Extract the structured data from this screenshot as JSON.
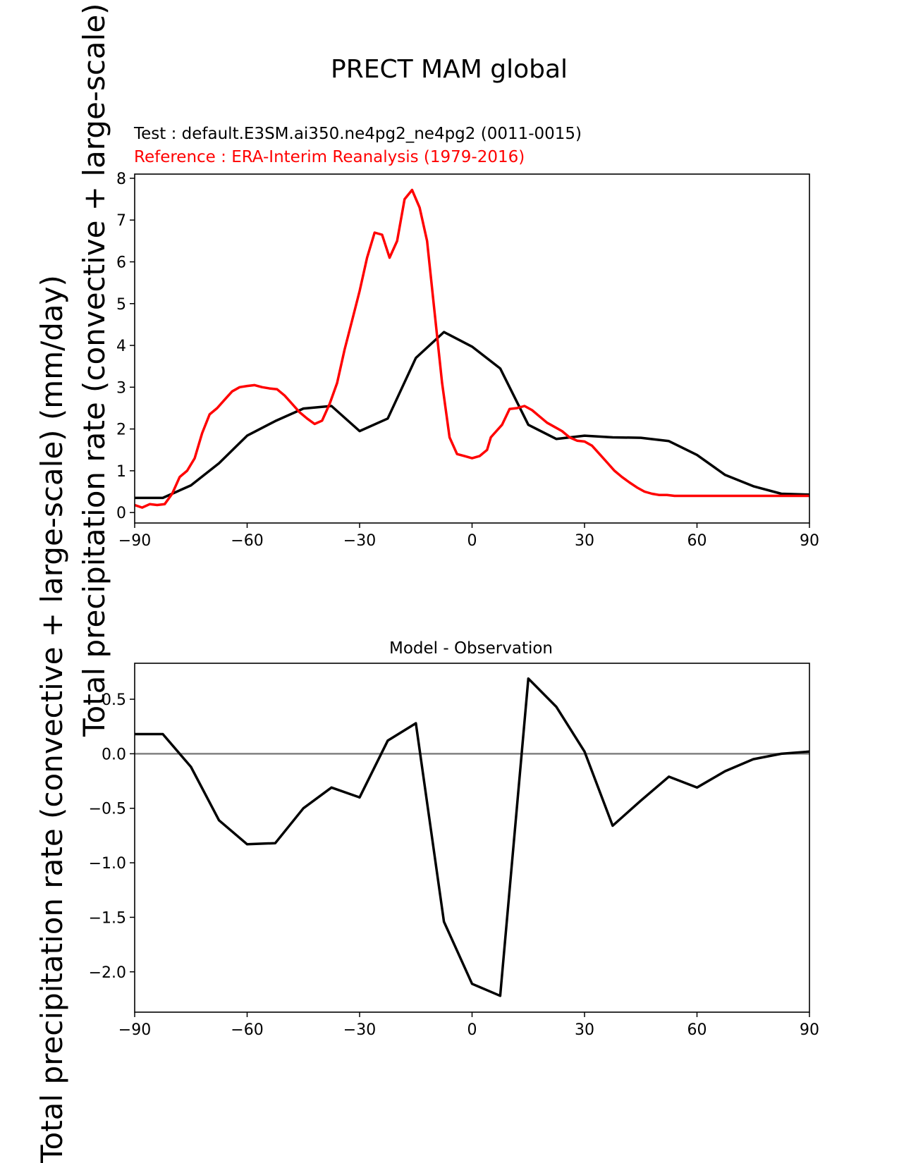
{
  "figure": {
    "title": "PRECT MAM global",
    "ylabel": "Total precipitation rate (convective + large-scale) (mm/day)"
  },
  "colors": {
    "test": "#000000",
    "reference": "#ff0000",
    "zero_line": "#808080"
  },
  "chart_data": [
    {
      "type": "line",
      "name": "climatology",
      "subtitle_test": "Test : default.E3SM.ai350.ne4pg2_ne4pg2 (0011-0015)",
      "subtitle_reference": "Reference : ERA-Interim Reanalysis (1979-2016)",
      "xlim": [
        -90,
        90
      ],
      "ylim": [
        -0.25,
        8.1
      ],
      "xticks": [
        -90,
        -60,
        -30,
        0,
        30,
        60,
        90
      ],
      "xtick_labels": [
        "−90",
        "−60",
        "−30",
        "0",
        "30",
        "60",
        "90"
      ],
      "yticks": [
        0,
        1,
        2,
        3,
        4,
        5,
        6,
        7,
        8
      ],
      "ytick_labels": [
        "0",
        "1",
        "2",
        "3",
        "4",
        "5",
        "6",
        "7",
        "8"
      ],
      "series": [
        {
          "name": "Test",
          "color": "#000000",
          "x": [
            -90,
            -82.5,
            -75,
            -67.5,
            -60,
            -52.5,
            -45,
            -37.5,
            -30,
            -22.5,
            -15,
            -7.5,
            0,
            7.5,
            15,
            22.5,
            30,
            37.5,
            45,
            52.5,
            60,
            67.5,
            75,
            82.5,
            90
          ],
          "y": [
            0.35,
            0.35,
            0.65,
            1.18,
            1.84,
            2.19,
            2.49,
            2.55,
            1.95,
            2.25,
            3.7,
            4.32,
            3.97,
            3.45,
            2.1,
            1.76,
            1.84,
            1.8,
            1.79,
            1.71,
            1.38,
            0.9,
            0.63,
            0.45,
            0.43
          ]
        },
        {
          "name": "Reference",
          "color": "#ff0000",
          "x": [
            -90,
            -88,
            -86,
            -84,
            -82,
            -80,
            -78,
            -76,
            -74,
            -72,
            -70,
            -68,
            -66,
            -64,
            -62,
            -60,
            -58,
            -56,
            -54,
            -52,
            -50,
            -48,
            -46,
            -44,
            -42,
            -40,
            -38,
            -36,
            -34,
            -32,
            -30,
            -28,
            -26,
            -24,
            -22,
            -20,
            -18,
            -16,
            -14,
            -12,
            -10,
            -8,
            -6,
            -4,
            -2,
            0,
            2,
            4,
            5,
            6,
            8,
            10,
            12,
            14,
            16,
            18,
            20,
            22,
            24,
            26,
            28,
            30,
            32,
            34,
            36,
            38,
            40,
            42,
            44,
            46,
            48,
            50,
            52,
            54,
            56,
            58,
            60,
            62,
            64,
            66,
            68,
            70,
            72,
            74,
            76,
            78,
            80,
            82,
            84,
            86,
            88,
            90
          ],
          "y": [
            0.18,
            0.12,
            0.2,
            0.18,
            0.2,
            0.45,
            0.85,
            1.0,
            1.3,
            1.9,
            2.35,
            2.5,
            2.7,
            2.9,
            3.0,
            3.03,
            3.05,
            3.0,
            2.97,
            2.95,
            2.8,
            2.6,
            2.4,
            2.25,
            2.12,
            2.2,
            2.6,
            3.1,
            3.9,
            4.6,
            5.3,
            6.1,
            6.7,
            6.65,
            6.1,
            6.5,
            7.5,
            7.72,
            7.3,
            6.5,
            4.8,
            3.1,
            1.8,
            1.4,
            1.35,
            1.3,
            1.35,
            1.5,
            1.8,
            1.9,
            2.1,
            2.48,
            2.5,
            2.55,
            2.45,
            2.3,
            2.15,
            2.05,
            1.95,
            1.8,
            1.72,
            1.7,
            1.6,
            1.4,
            1.2,
            1.0,
            0.85,
            0.72,
            0.6,
            0.5,
            0.45,
            0.42,
            0.42,
            0.4,
            0.4,
            0.4,
            0.4,
            0.4,
            0.4,
            0.4,
            0.4,
            0.4,
            0.4,
            0.4,
            0.4,
            0.4,
            0.4,
            0.4,
            0.4,
            0.4,
            0.4,
            0.4
          ]
        }
      ]
    },
    {
      "type": "line",
      "name": "difference",
      "title": "Model - Observation",
      "xlim": [
        -90,
        90
      ],
      "ylim": [
        -2.37,
        0.83
      ],
      "xticks": [
        -90,
        -60,
        -30,
        0,
        30,
        60,
        90
      ],
      "xtick_labels": [
        "−90",
        "−60",
        "−30",
        "0",
        "30",
        "60",
        "90"
      ],
      "yticks": [
        0.5,
        0,
        -0.5,
        -1,
        -1.5,
        -2
      ],
      "ytick_labels": [
        "0.5",
        "0.0",
        "−0.5",
        "−1.0",
        "−1.5",
        "−2.0"
      ],
      "zero_line": 0,
      "series": [
        {
          "name": "Model - Observation",
          "color": "#000000",
          "x": [
            -90,
            -82.5,
            -75,
            -67.5,
            -60,
            -52.5,
            -45,
            -37.5,
            -30,
            -22.5,
            -15,
            -7.5,
            0,
            7.5,
            15,
            22.5,
            30,
            37.5,
            45,
            52.5,
            60,
            67.5,
            75,
            82.5,
            90
          ],
          "y": [
            0.18,
            0.18,
            -0.12,
            -0.61,
            -0.83,
            -0.82,
            -0.5,
            -0.31,
            -0.4,
            0.12,
            0.28,
            -1.54,
            -2.11,
            -2.22,
            0.69,
            0.43,
            0.02,
            -0.66,
            -0.43,
            -0.21,
            -0.31,
            -0.16,
            -0.05,
            0.0,
            0.02
          ]
        }
      ]
    }
  ]
}
